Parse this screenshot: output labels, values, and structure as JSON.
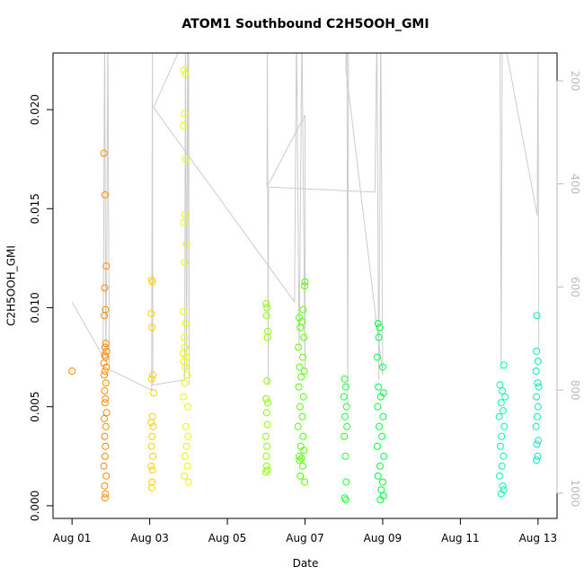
{
  "chart_data": {
    "type": "scatter",
    "title": "ATOM1 Southbound C2H5OOH_GMI",
    "xlabel": "Date",
    "ylabel": "C2H5OOH_GMI",
    "xlim": [
      0.51,
      13.49
    ],
    "xticks": [
      {
        "value": 1,
        "label": "Aug 01"
      },
      {
        "value": 3,
        "label": "Aug 03"
      },
      {
        "value": 5,
        "label": "Aug 05"
      },
      {
        "value": 7,
        "label": "Aug 07"
      },
      {
        "value": 9,
        "label": "Aug 09"
      },
      {
        "value": 11,
        "label": "Aug 11"
      },
      {
        "value": 13,
        "label": "Aug 13"
      }
    ],
    "ylim": [
      -0.00064,
      0.02286
    ],
    "yticks": [
      {
        "value": 0,
        "label": "0.000"
      },
      {
        "value": 0.005,
        "label": "0.005"
      },
      {
        "value": 0.01,
        "label": "0.010"
      },
      {
        "value": 0.015,
        "label": "0.015"
      },
      {
        "value": 0.02,
        "label": "0.020"
      }
    ],
    "y2lim": [
      1049,
      146
    ],
    "y2ticks": [
      200,
      400,
      600,
      800,
      1000
    ],
    "y2color": "#bbbbbb",
    "series": [
      {
        "mode": "line",
        "axis": "y2",
        "color": "#cccccc",
        "x": [
          1.0,
          1.8,
          1.84,
          1.87,
          1.9,
          1.92,
          1.96,
          3.05,
          3.07,
          3.08,
          3.9,
          3.92,
          3.95,
          3.98,
          4.02,
          4.0,
          3.1,
          6.73,
          6.78,
          6.85,
          6.92,
          7.0,
          7.0,
          6.02,
          6.03,
          6.05,
          6.06,
          8.8,
          8.85,
          8.9,
          8.95,
          9.0,
          8.05,
          8.08,
          8.1,
          8.12,
          9.44,
          12.02,
          12.05,
          12.08,
          12.98,
          13.0,
          13.02
        ],
        "values": [
          629,
          735,
          100,
          745,
          470,
          100,
          760,
          800,
          100,
          790,
          780,
          100,
          760,
          100,
          790,
          100,
          252,
          629,
          100,
          720,
          100,
          760,
          266,
          406,
          100,
          790,
          406,
          416,
          100,
          780,
          100,
          770,
          175,
          100,
          830,
          100,
          140,
          100,
          760,
          100,
          461,
          100,
          720
        ]
      },
      {
        "mode": "points",
        "color": "#ff8c00",
        "x": [
          1.0,
          1.82,
          1.85,
          1.88,
          1.84,
          1.86,
          1.83,
          1.87,
          1.85,
          1.89,
          1.84,
          1.86,
          1.82,
          1.88,
          1.85,
          1.83,
          1.87,
          1.84,
          1.86,
          1.85,
          1.89,
          1.83,
          1.87,
          1.84,
          1.86,
          1.85,
          1.82,
          1.88,
          1.84,
          1.86,
          1.85
        ],
        "values": [
          0.0068,
          0.0178,
          0.0157,
          0.0121,
          0.011,
          0.0099,
          0.0096,
          0.0082,
          0.008,
          0.0078,
          0.0076,
          0.0075,
          0.0072,
          0.007,
          0.0068,
          0.0066,
          0.0062,
          0.0058,
          0.0054,
          0.0052,
          0.0047,
          0.0044,
          0.004,
          0.0035,
          0.003,
          0.0025,
          0.002,
          0.0015,
          0.001,
          0.0006,
          0.0004
        ]
      },
      {
        "mode": "points",
        "color": "#ffd200",
        "x": [
          3.05,
          3.07,
          3.04,
          3.06,
          3.08,
          3.05,
          3.1,
          3.07,
          3.04,
          3.09,
          3.06,
          3.05,
          3.08,
          3.04,
          3.07,
          3.06,
          3.05
        ],
        "values": [
          0.0114,
          0.0113,
          0.0097,
          0.009,
          0.0066,
          0.0064,
          0.0057,
          0.0045,
          0.0042,
          0.004,
          0.0035,
          0.003,
          0.0025,
          0.002,
          0.0018,
          0.0012,
          0.0009
        ]
      },
      {
        "mode": "points",
        "color": "#e6ff00",
        "x": [
          3.88,
          3.92,
          3.9,
          3.86,
          3.93,
          3.91,
          3.88,
          3.95,
          3.9,
          3.87,
          3.93,
          3.89,
          3.91,
          3.86,
          3.94,
          3.88,
          3.92,
          3.96,
          3.9,
          3.87,
          3.98,
          3.93,
          3.99,
          3.95,
          3.91,
          3.97,
          3.89,
          4.0
        ],
        "values": [
          0.022,
          0.0218,
          0.0198,
          0.0192,
          0.0175,
          0.0147,
          0.0143,
          0.0132,
          0.0123,
          0.0098,
          0.0092,
          0.0085,
          0.008,
          0.0077,
          0.0075,
          0.0073,
          0.007,
          0.0066,
          0.0062,
          0.0055,
          0.005,
          0.004,
          0.0035,
          0.003,
          0.0025,
          0.002,
          0.0015,
          0.0012
        ]
      },
      {
        "mode": "points",
        "color": "#88ff00",
        "x": [
          6.0,
          6.02,
          6.01,
          6.04,
          6.03,
          6.02,
          6.0,
          6.04,
          6.01,
          6.03,
          5.99,
          6.02,
          6.0,
          6.01,
          6.03,
          5.99
        ],
        "values": [
          0.0102,
          0.01,
          0.0096,
          0.0088,
          0.0085,
          0.0063,
          0.0054,
          0.0052,
          0.0047,
          0.0041,
          0.0035,
          0.003,
          0.0025,
          0.002,
          0.0018,
          0.0017
        ]
      },
      {
        "mode": "points",
        "color": "#55ff00",
        "x": [
          7.0,
          6.99,
          6.95,
          6.85,
          6.92,
          6.88,
          6.97,
          6.83,
          6.94,
          6.86,
          6.98,
          6.9,
          6.84,
          6.96,
          6.87,
          6.93,
          6.82,
          6.95,
          6.89,
          6.97,
          6.85,
          6.91,
          6.86,
          6.94,
          6.88,
          6.99
        ],
        "values": [
          0.0113,
          0.0111,
          0.0099,
          0.0095,
          0.0093,
          0.009,
          0.0085,
          0.008,
          0.0075,
          0.007,
          0.0068,
          0.0065,
          0.006,
          0.0055,
          0.005,
          0.0045,
          0.004,
          0.0035,
          0.003,
          0.0028,
          0.0025,
          0.0024,
          0.0023,
          0.002,
          0.0015,
          0.0012
        ]
      },
      {
        "mode": "points",
        "color": "#22ff33",
        "x": [
          8.02,
          8.05,
          8.0,
          8.07,
          8.03,
          8.08,
          8.01,
          8.04,
          8.06,
          8.02,
          8.05
        ],
        "values": [
          0.0064,
          0.006,
          0.0055,
          0.005,
          0.0045,
          0.004,
          0.0035,
          0.0025,
          0.0012,
          0.0004,
          0.0003
        ]
      },
      {
        "mode": "points",
        "color": "#00ff44",
        "x": [
          8.88,
          8.92,
          8.9,
          8.86,
          9.0,
          8.89,
          9.02,
          8.95,
          8.87,
          9.01,
          8.91,
          8.98,
          8.86,
          9.03,
          8.93,
          8.88,
          9.0,
          8.96,
          9.02,
          8.94
        ],
        "values": [
          0.0092,
          0.009,
          0.0085,
          0.0075,
          0.007,
          0.006,
          0.0057,
          0.0055,
          0.005,
          0.0045,
          0.004,
          0.0035,
          0.003,
          0.0025,
          0.002,
          0.0015,
          0.0012,
          0.0008,
          0.0005,
          0.0003
        ]
      },
      {
        "mode": "points",
        "color": "#00ffaa",
        "x": [
          12.12,
          12.02,
          12.08,
          12.15,
          12.05,
          12.1,
          12.0,
          12.13,
          12.06,
          12.03,
          12.11,
          12.07,
          12.01,
          12.09,
          12.12,
          12.05
        ],
        "values": [
          0.0071,
          0.0061,
          0.0058,
          0.0055,
          0.0052,
          0.0048,
          0.0045,
          0.004,
          0.0035,
          0.003,
          0.0025,
          0.002,
          0.0015,
          0.001,
          0.0008,
          0.0006
        ]
      },
      {
        "mode": "points",
        "color": "#00eebb",
        "x": [
          12.97,
          12.96,
          13.0,
          12.95,
          12.99,
          13.02,
          12.96,
          13.0,
          12.98,
          12.95,
          13.01,
          12.97,
          12.99,
          12.96
        ],
        "values": [
          0.0096,
          0.0078,
          0.0073,
          0.0068,
          0.0062,
          0.006,
          0.0055,
          0.005,
          0.0045,
          0.004,
          0.0033,
          0.0031,
          0.0025,
          0.0023
        ]
      }
    ]
  }
}
